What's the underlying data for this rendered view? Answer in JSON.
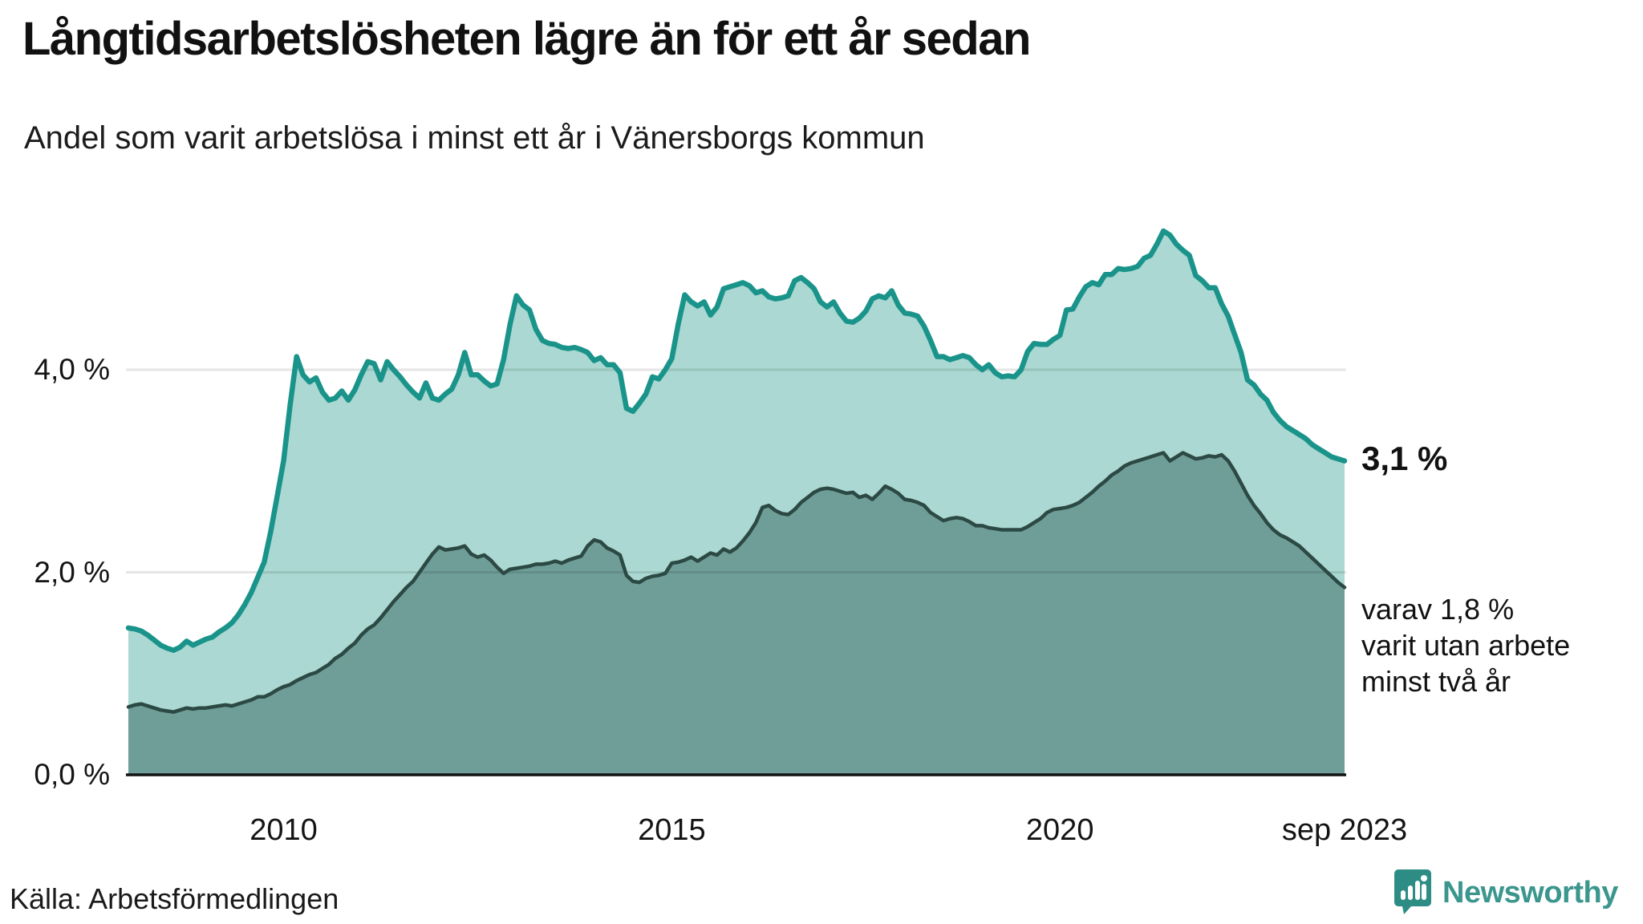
{
  "header": {
    "title": "Långtidsarbetslösheten lägre än för ett år sedan",
    "subtitle": "Andel som varit arbetslösa i minst ett år i Vänersborgs kommun"
  },
  "annotations": {
    "latest_total": "3,1 %",
    "detail_lines": [
      "varav 1,8 %",
      "varit utan arbete",
      "minst två år"
    ]
  },
  "source": {
    "label": "Källa: Arbetsförmedlingen"
  },
  "branding": {
    "name": "Newsworthy",
    "icon": "speech-bubble-bar-chart-icon",
    "color": "#3b968e",
    "icon_bg": "#2d8d85"
  },
  "colors": {
    "series1_line": "#1a948a",
    "series1_fill": "#abd8d2",
    "series2_line": "#2c4944",
    "series2_fill": "#6f9e99",
    "gridline": "rgba(0,0,0,0.10)",
    "baseline": "#111111",
    "text": "#111111"
  },
  "chart_data": {
    "type": "area",
    "title": "Långtidsarbetslösheten lägre än för ett år sedan",
    "xlabel": "",
    "ylabel": "",
    "x_start_year": 2008.0,
    "x_end_year": 2023.6667,
    "x_step_months": 1,
    "ylim": [
      0,
      5.6
    ],
    "grid": "horizontal",
    "legend": "none",
    "y_ticks": [
      {
        "v": 0,
        "label": "0,0 %"
      },
      {
        "v": 2,
        "label": "2,0 %"
      },
      {
        "v": 4,
        "label": "4,0 %"
      }
    ],
    "x_ticks": [
      {
        "t": 2010,
        "label": "2010"
      },
      {
        "t": 2015,
        "label": "2015"
      },
      {
        "t": 2020,
        "label": "2020"
      },
      {
        "t": 2023.6667,
        "label": "sep 2023"
      }
    ],
    "series": [
      {
        "name": "Andel arbetslösa minst ett år",
        "end_label": "3,1 %",
        "values": [
          1.45,
          1.44,
          1.42,
          1.38,
          1.33,
          1.28,
          1.25,
          1.23,
          1.26,
          1.32,
          1.28,
          1.31,
          1.34,
          1.36,
          1.41,
          1.45,
          1.5,
          1.58,
          1.68,
          1.8,
          1.95,
          2.1,
          2.4,
          2.75,
          3.1,
          3.65,
          4.13,
          3.95,
          3.88,
          3.92,
          3.78,
          3.7,
          3.72,
          3.79,
          3.7,
          3.8,
          3.95,
          4.08,
          4.06,
          3.9,
          4.08,
          4.0,
          3.93,
          3.85,
          3.78,
          3.72,
          3.87,
          3.72,
          3.7,
          3.76,
          3.81,
          3.95,
          4.17,
          3.95,
          3.95,
          3.89,
          3.84,
          3.86,
          4.1,
          4.45,
          4.73,
          4.64,
          4.59,
          4.4,
          4.29,
          4.26,
          4.25,
          4.22,
          4.21,
          4.22,
          4.2,
          4.17,
          4.09,
          4.12,
          4.05,
          4.05,
          3.97,
          3.62,
          3.59,
          3.67,
          3.76,
          3.93,
          3.91,
          4.0,
          4.11,
          4.45,
          4.74,
          4.67,
          4.63,
          4.67,
          4.54,
          4.62,
          4.8,
          4.82,
          4.84,
          4.86,
          4.83,
          4.76,
          4.78,
          4.72,
          4.7,
          4.71,
          4.73,
          4.88,
          4.91,
          4.86,
          4.8,
          4.67,
          4.62,
          4.67,
          4.56,
          4.48,
          4.47,
          4.51,
          4.58,
          4.7,
          4.73,
          4.71,
          4.78,
          4.64,
          4.56,
          4.55,
          4.53,
          4.43,
          4.29,
          4.13,
          4.13,
          4.1,
          4.12,
          4.14,
          4.12,
          4.05,
          4.0,
          4.05,
          3.97,
          3.93,
          3.94,
          3.93,
          4.0,
          4.18,
          4.26,
          4.25,
          4.25,
          4.3,
          4.34,
          4.59,
          4.6,
          4.72,
          4.82,
          4.86,
          4.84,
          4.94,
          4.94,
          5.0,
          4.99,
          5.0,
          5.02,
          5.1,
          5.13,
          5.24,
          5.37,
          5.33,
          5.24,
          5.18,
          5.13,
          4.93,
          4.88,
          4.81,
          4.81,
          4.65,
          4.53,
          4.35,
          4.17,
          3.9,
          3.85,
          3.76,
          3.7,
          3.58,
          3.5,
          3.44,
          3.4,
          3.36,
          3.32,
          3.26,
          3.22,
          3.18,
          3.14,
          3.12,
          3.1
        ]
      },
      {
        "name": "Andel arbetslösa minst två år",
        "end_label": "1,8 %",
        "values": [
          0.67,
          0.69,
          0.7,
          0.68,
          0.66,
          0.64,
          0.63,
          0.62,
          0.64,
          0.66,
          0.65,
          0.66,
          0.66,
          0.67,
          0.68,
          0.69,
          0.68,
          0.7,
          0.72,
          0.74,
          0.77,
          0.77,
          0.8,
          0.84,
          0.87,
          0.89,
          0.93,
          0.96,
          0.99,
          1.01,
          1.05,
          1.09,
          1.15,
          1.19,
          1.25,
          1.3,
          1.38,
          1.44,
          1.48,
          1.55,
          1.63,
          1.71,
          1.78,
          1.85,
          1.91,
          2.0,
          2.09,
          2.18,
          2.25,
          2.22,
          2.23,
          2.24,
          2.26,
          2.18,
          2.15,
          2.17,
          2.12,
          2.05,
          1.99,
          2.03,
          2.04,
          2.05,
          2.06,
          2.08,
          2.08,
          2.09,
          2.11,
          2.09,
          2.12,
          2.14,
          2.16,
          2.26,
          2.32,
          2.3,
          2.24,
          2.21,
          2.17,
          1.97,
          1.91,
          1.9,
          1.94,
          1.96,
          1.97,
          1.99,
          2.09,
          2.1,
          2.12,
          2.15,
          2.11,
          2.15,
          2.19,
          2.17,
          2.23,
          2.2,
          2.24,
          2.31,
          2.39,
          2.49,
          2.64,
          2.66,
          2.61,
          2.58,
          2.57,
          2.62,
          2.69,
          2.74,
          2.79,
          2.82,
          2.83,
          2.82,
          2.8,
          2.78,
          2.79,
          2.74,
          2.76,
          2.72,
          2.78,
          2.85,
          2.82,
          2.78,
          2.72,
          2.71,
          2.69,
          2.66,
          2.59,
          2.55,
          2.51,
          2.53,
          2.54,
          2.53,
          2.5,
          2.46,
          2.46,
          2.44,
          2.43,
          2.42,
          2.42,
          2.42,
          2.42,
          2.45,
          2.49,
          2.53,
          2.59,
          2.62,
          2.63,
          2.64,
          2.66,
          2.69,
          2.74,
          2.79,
          2.85,
          2.9,
          2.96,
          3.0,
          3.05,
          3.08,
          3.1,
          3.12,
          3.14,
          3.16,
          3.18,
          3.1,
          3.14,
          3.18,
          3.15,
          3.12,
          3.13,
          3.15,
          3.14,
          3.16,
          3.1,
          3.0,
          2.88,
          2.76,
          2.66,
          2.58,
          2.49,
          2.42,
          2.37,
          2.34,
          2.3,
          2.26,
          2.2,
          2.14,
          2.08,
          2.02,
          1.96,
          1.9,
          1.85
        ]
      }
    ]
  }
}
